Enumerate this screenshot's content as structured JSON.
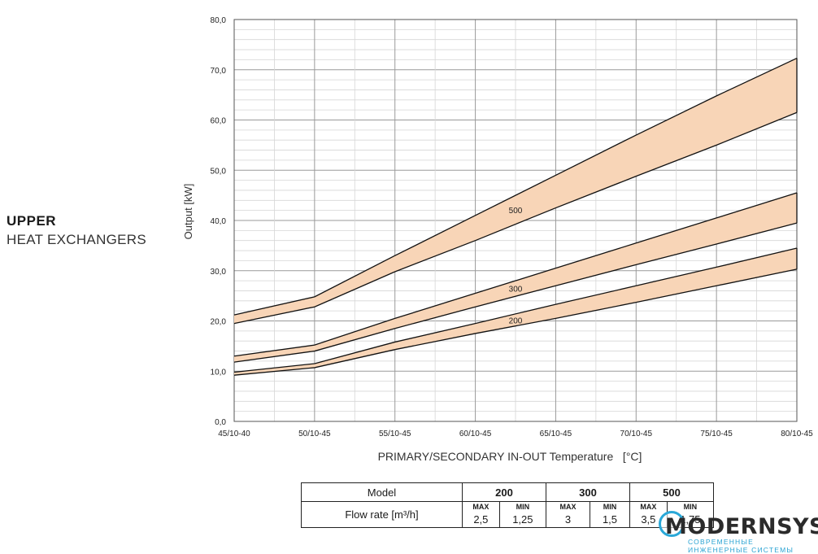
{
  "side_title": {
    "line1": "UPPER",
    "line2": "HEAT EXCHANGERS"
  },
  "chart_data": {
    "type": "area",
    "title": "",
    "xlabel": "PRIMARY/SECONDARY IN-OUT Temperature   [°C]",
    "ylabel": "Output [kW]",
    "categories": [
      "45/10-40",
      "50/10-45",
      "55/10-45",
      "60/10-45",
      "65/10-45",
      "70/10-45",
      "75/10-45",
      "80/10-45"
    ],
    "ylim": [
      0,
      80
    ],
    "yticks": [
      "0,0",
      "10,0",
      "20,0",
      "30,0",
      "40,0",
      "50,0",
      "60,0",
      "70,0",
      "80,0"
    ],
    "grid": true,
    "band_color": "#f8d5b7",
    "series": [
      {
        "name": "500",
        "upper": [
          21.2,
          24.8,
          33.0,
          41.0,
          49.0,
          57.0,
          64.8,
          72.3
        ],
        "lower": [
          19.5,
          22.8,
          29.8,
          36.0,
          42.5,
          48.8,
          55.0,
          61.5
        ]
      },
      {
        "name": "300",
        "upper": [
          13.0,
          15.2,
          20.5,
          25.5,
          30.5,
          35.5,
          40.5,
          45.5
        ],
        "lower": [
          11.8,
          14.0,
          18.5,
          22.8,
          27.0,
          31.2,
          35.3,
          39.5
        ]
      },
      {
        "name": "200",
        "upper": [
          9.8,
          11.5,
          15.8,
          19.5,
          23.3,
          27.0,
          30.7,
          34.5
        ],
        "lower": [
          9.2,
          10.7,
          14.3,
          17.5,
          20.5,
          23.7,
          27.0,
          30.3
        ]
      }
    ]
  },
  "flow_table": {
    "row_label": "Model",
    "flow_label": "Flow rate [m³/h]",
    "max_label": "MAX",
    "min_label": "MIN",
    "models": [
      {
        "name": "200",
        "max": "2,5",
        "min": "1,25"
      },
      {
        "name": "300",
        "max": "3",
        "min": "1,5"
      },
      {
        "name": "500",
        "max": "3,5",
        "min": "1,75"
      }
    ]
  },
  "logo": {
    "wordmark": "MODERNSYS",
    "tagline": "СОВРЕМЕННЫЕ ИНЖЕНЕРНЫЕ СИСТЕМЫ",
    "accent": "#29a3d3"
  }
}
